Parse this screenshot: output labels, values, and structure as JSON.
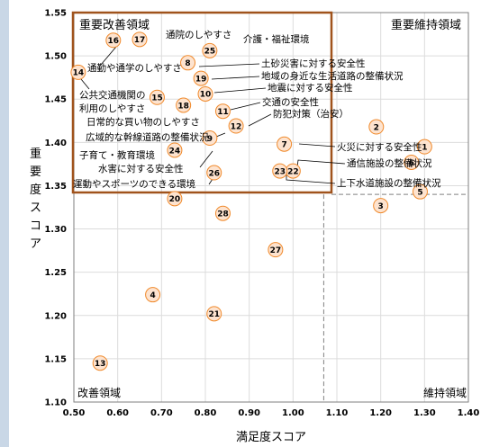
{
  "chart_data": {
    "type": "scatter",
    "xlabel": "満足度スコア",
    "ylabel": "重要度スコア",
    "xlim": [
      0.5,
      1.4
    ],
    "ylim": [
      1.1,
      1.55
    ],
    "xticks": [
      "0.50",
      "0.60",
      "0.70",
      "0.80",
      "0.90",
      "1.00",
      "1.10",
      "1.20",
      "1.30",
      "1.40"
    ],
    "yticks": [
      "1.10",
      "1.15",
      "1.20",
      "1.25",
      "1.30",
      "1.35",
      "1.40",
      "1.45",
      "1.50",
      "1.55"
    ],
    "grid": true,
    "reference_lines": {
      "x": 1.07,
      "y": 1.34
    },
    "quadrant_labels": {
      "top_left": "重要改善領域",
      "top_right": "重要維持領域",
      "bottom_left": "改善領域",
      "bottom_right": "維持領域"
    },
    "points": [
      {
        "id": "1",
        "x": 1.3,
        "y": 1.395
      },
      {
        "id": "2",
        "x": 1.19,
        "y": 1.418
      },
      {
        "id": "3",
        "x": 1.2,
        "y": 1.327
      },
      {
        "id": "4",
        "x": 0.68,
        "y": 1.224
      },
      {
        "id": "5",
        "x": 1.29,
        "y": 1.343
      },
      {
        "id": "6",
        "x": 1.27,
        "y": 1.377
      },
      {
        "id": "7",
        "x": 0.98,
        "y": 1.398
      },
      {
        "id": "8",
        "x": 0.76,
        "y": 1.492
      },
      {
        "id": "9",
        "x": 0.81,
        "y": 1.405
      },
      {
        "id": "10",
        "x": 0.8,
        "y": 1.456
      },
      {
        "id": "11",
        "x": 0.84,
        "y": 1.436
      },
      {
        "id": "12",
        "x": 0.87,
        "y": 1.419
      },
      {
        "id": "13",
        "x": 0.56,
        "y": 1.145
      },
      {
        "id": "14",
        "x": 0.51,
        "y": 1.481
      },
      {
        "id": "15",
        "x": 0.69,
        "y": 1.452
      },
      {
        "id": "16",
        "x": 0.59,
        "y": 1.518
      },
      {
        "id": "17",
        "x": 0.65,
        "y": 1.519
      },
      {
        "id": "18",
        "x": 0.75,
        "y": 1.443
      },
      {
        "id": "19",
        "x": 0.79,
        "y": 1.474
      },
      {
        "id": "20",
        "x": 0.73,
        "y": 1.335
      },
      {
        "id": "21",
        "x": 0.82,
        "y": 1.202
      },
      {
        "id": "22",
        "x": 1.0,
        "y": 1.367
      },
      {
        "id": "23",
        "x": 0.97,
        "y": 1.367
      },
      {
        "id": "24",
        "x": 0.73,
        "y": 1.391
      },
      {
        "id": "25",
        "x": 0.81,
        "y": 1.506
      },
      {
        "id": "26",
        "x": 0.82,
        "y": 1.365
      },
      {
        "id": "27",
        "x": 0.96,
        "y": 1.276
      },
      {
        "id": "28",
        "x": 0.84,
        "y": 1.318
      }
    ],
    "annotations": [
      {
        "id": "17",
        "text": "通院のしやすさ"
      },
      {
        "id": "25",
        "text": "介護・福祉環境"
      },
      {
        "id": "8",
        "text": "土砂災害に対する安全性"
      },
      {
        "id": "16",
        "text": "通勤や通学のしやすさ"
      },
      {
        "id": "19",
        "text": "地域の身近な生活道路の整備状況"
      },
      {
        "id": "10",
        "text": "地震に対する安全性"
      },
      {
        "id": "11",
        "text": "交通の安全性"
      },
      {
        "id": "12",
        "text": "防犯対策（治安）"
      },
      {
        "id": "15",
        "text": "公共交通機関の利用のしやすさ"
      },
      {
        "id": "18",
        "text": "日常的な買い物のしやすさ"
      },
      {
        "id": "9",
        "text": "広域的な幹線道路の整備状況"
      },
      {
        "id": "24",
        "text": "子育て・教育環境"
      },
      {
        "id": "20",
        "text": "水害に対する安全性"
      },
      {
        "id": "26",
        "text": "運動やスポーツのできる環境"
      },
      {
        "id": "7",
        "text": "火災に対する安全性"
      },
      {
        "id": "6",
        "text": "通信施設の整備状況"
      },
      {
        "id": "5",
        "text": "上下水道施設の整備状況"
      }
    ],
    "colors": {
      "marker_fill": "#fde3cf",
      "marker_stroke": "#f08a2c",
      "highlight_box": "#a0531c",
      "reference_line": "#808080",
      "grid": "#dcdcdc"
    }
  }
}
